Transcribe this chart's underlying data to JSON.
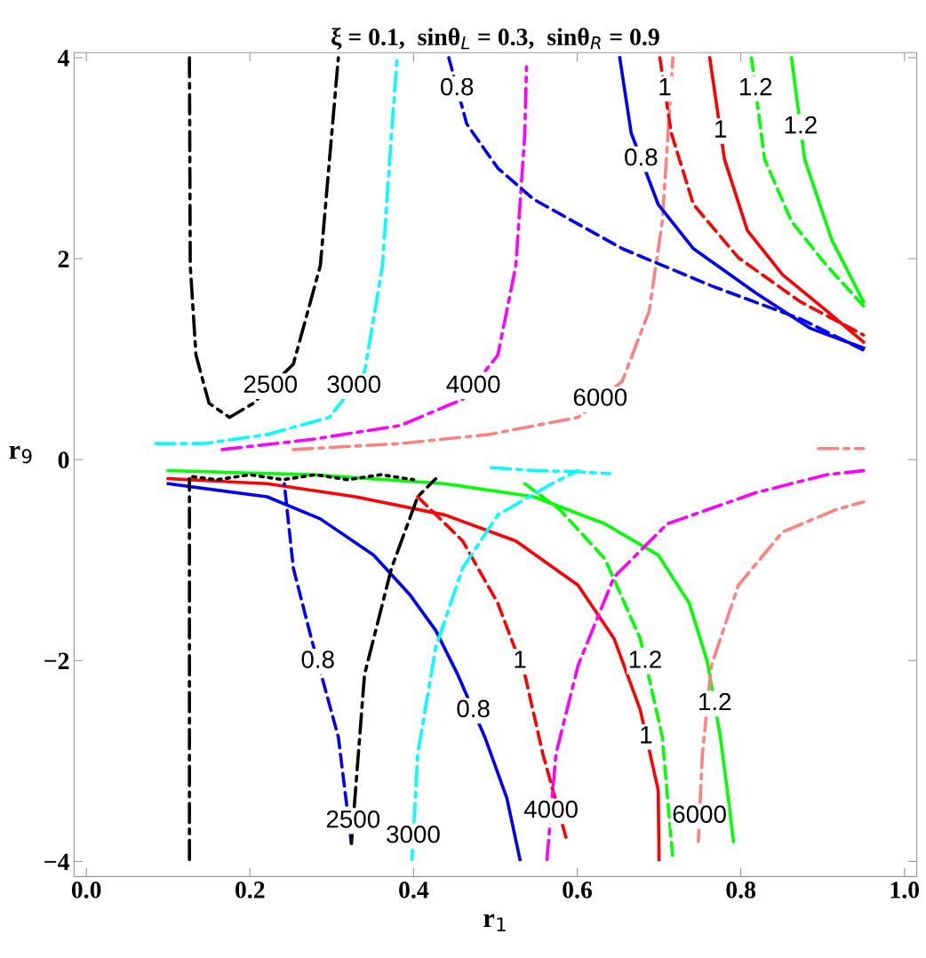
{
  "chart_data": {
    "type": "line",
    "title": "ξ = 0.1,  sinθ$_{L}$ = 0.3,  sinθ$_{R}$ = 0.9",
    "xlabel": "r$_{1}$",
    "ylabel": "r$_{9}$",
    "xlim": [
      -0.015,
      1.015
    ],
    "ylim": [
      -4.15,
      4.05
    ],
    "xticks": [
      {
        "value": 0,
        "label": "0.0"
      },
      {
        "value": 0.2,
        "label": "0.2"
      },
      {
        "value": 0.4,
        "label": "0.4"
      },
      {
        "value": 0.6,
        "label": "0.6"
      },
      {
        "value": 0.8,
        "label": "0.8"
      },
      {
        "value": 1,
        "label": "1.0"
      }
    ],
    "yticks": [
      {
        "value": -4,
        "label": "−4"
      },
      {
        "value": -2,
        "label": "−2"
      },
      0,
      2,
      4
    ],
    "grid": false,
    "marker": "none",
    "series": [
      {
        "color": "#000000",
        "line_style": "dashdot",
        "x": [
          0.126,
          0.127,
          0.134,
          0.15,
          0.175,
          0.204,
          0.253,
          0.286,
          0.308
        ],
        "values": [
          4.0,
          1.93,
          1.04,
          0.56,
          0.42,
          0.56,
          0.95,
          1.93,
          4.0
        ]
      },
      {
        "color": "#00ffff",
        "line_style": "dashdot",
        "x": [
          0.085,
          0.145,
          0.221,
          0.297,
          0.34,
          0.362,
          0.373,
          0.38
        ],
        "values": [
          0.16,
          0.16,
          0.25,
          0.42,
          0.87,
          1.93,
          3.25,
          4.0
        ]
      },
      {
        "color": "#ff00ff",
        "line_style": "dashdot",
        "x": [
          0.166,
          0.275,
          0.384,
          0.46,
          0.503,
          0.525,
          0.536,
          0.538
        ],
        "values": [
          0.1,
          0.2,
          0.34,
          0.6,
          1.04,
          1.93,
          3.25,
          3.91
        ]
      },
      {
        "color": "#ff8080",
        "line_style": "dashdot",
        "x": [
          0.253,
          0.384,
          0.492,
          0.601,
          0.655,
          0.688,
          0.704,
          0.717
        ],
        "values": [
          0.1,
          0.16,
          0.25,
          0.42,
          0.78,
          1.48,
          2.37,
          4.0
        ]
      },
      {
        "color": "#ff8080",
        "line_style": "dashdot",
        "x": [
          0.895,
          0.95
        ],
        "values": [
          0.11,
          0.11
        ]
      },
      {
        "color": "#0000ff",
        "line_style": "dashed",
        "x": [
          0.443,
          0.465,
          0.503,
          0.547,
          0.655,
          0.764,
          0.873,
          0.95
        ],
        "values": [
          4.0,
          3.34,
          2.9,
          2.59,
          2.1,
          1.73,
          1.4,
          1.09
        ]
      },
      {
        "color": "#0000ff",
        "line_style": "solid",
        "x": [
          0.652,
          0.666,
          0.699,
          0.742,
          0.818,
          0.884,
          0.95
        ],
        "values": [
          4.0,
          3.25,
          2.54,
          2.1,
          1.66,
          1.31,
          1.11
        ]
      },
      {
        "color": "#ff0000",
        "line_style": "dashed",
        "x": [
          0.701,
          0.715,
          0.742,
          0.797,
          0.873,
          0.95
        ],
        "values": [
          4.0,
          3.25,
          2.54,
          2.01,
          1.57,
          1.24
        ]
      },
      {
        "color": "#ff0000",
        "line_style": "solid",
        "x": [
          0.762,
          0.78,
          0.808,
          0.851,
          0.905,
          0.95
        ],
        "values": [
          4.0,
          2.99,
          2.28,
          1.84,
          1.48,
          1.17
        ]
      },
      {
        "color": "#00ff00",
        "line_style": "dashed",
        "x": [
          0.813,
          0.829,
          0.862,
          0.905,
          0.95
        ],
        "values": [
          4.0,
          2.99,
          2.37,
          1.93,
          1.53
        ]
      },
      {
        "color": "#00ff00",
        "line_style": "solid",
        "x": [
          0.862,
          0.878,
          0.911,
          0.95
        ],
        "values": [
          4.0,
          2.99,
          2.19,
          1.57
        ]
      },
      {
        "color": "#0000ff",
        "line_style": "solid",
        "x": [
          0.1,
          0.221,
          0.286,
          0.351,
          0.395,
          0.427,
          0.454,
          0.487,
          0.514,
          0.53
        ],
        "values": [
          -0.24,
          -0.37,
          -0.59,
          -0.95,
          -1.34,
          -1.7,
          -2.14,
          -2.76,
          -3.37,
          -3.98
        ]
      },
      {
        "color": "#ff0000",
        "line_style": "solid",
        "x": [
          0.1,
          0.221,
          0.329,
          0.438,
          0.525,
          0.601,
          0.645,
          0.677,
          0.699,
          0.7
        ],
        "values": [
          -0.19,
          -0.24,
          -0.37,
          -0.55,
          -0.81,
          -1.25,
          -1.78,
          -2.49,
          -3.29,
          -3.98
        ]
      },
      {
        "color": "#00ff00",
        "line_style": "solid",
        "x": [
          0.1,
          0.275,
          0.438,
          0.547,
          0.634,
          0.699,
          0.737,
          0.759,
          0.775,
          0.786,
          0.791
        ],
        "values": [
          -0.11,
          -0.15,
          -0.24,
          -0.37,
          -0.64,
          -0.95,
          -1.43,
          -2.01,
          -2.76,
          -3.46,
          -3.8
        ]
      },
      {
        "color": "#ff0000",
        "line_style": "dashed",
        "x": [
          0.405,
          0.46,
          0.503,
          0.536,
          0.558,
          0.587
        ],
        "values": [
          -0.37,
          -0.81,
          -1.43,
          -2.14,
          -2.93,
          -3.78
        ]
      },
      {
        "color": "#00ff00",
        "line_style": "dashed",
        "x": [
          0.536,
          0.579,
          0.634,
          0.677,
          0.704,
          0.717
        ],
        "values": [
          -0.24,
          -0.5,
          -0.99,
          -1.78,
          -2.76,
          -3.98
        ]
      },
      {
        "color": "#0000ff",
        "line_style": "dashed",
        "x": [
          0.324,
          0.308,
          0.275,
          0.253,
          0.242
        ],
        "values": [
          -3.82,
          -2.76,
          -1.78,
          -1.08,
          -0.24
        ]
      },
      {
        "color": "#000000",
        "line_style": "dashdot",
        "x": [
          0.126,
          0.126,
          0.126
        ],
        "values": [
          -3.98,
          -1.61,
          -0.19
        ]
      },
      {
        "color": "#000000",
        "line_style": "dashdot",
        "x": [
          0.324,
          0.34,
          0.373,
          0.405,
          0.427
        ],
        "values": [
          -3.82,
          -2.14,
          -1.08,
          -0.37,
          -0.19
        ]
      },
      {
        "color": "#000000",
        "line_style": "dotted",
        "x": [
          0.13,
          0.16,
          0.2,
          0.24,
          0.28,
          0.32,
          0.36,
          0.4
        ],
        "values": [
          -0.17,
          -0.2,
          -0.15,
          -0.2,
          -0.15,
          -0.2,
          -0.15,
          -0.2
        ]
      },
      {
        "color": "#00ffff",
        "line_style": "dashdot",
        "x": [
          0.398,
          0.405,
          0.427,
          0.46,
          0.503,
          0.569,
          0.601
        ],
        "values": [
          -3.98,
          -2.93,
          -1.87,
          -1.08,
          -0.55,
          -0.24,
          -0.11
        ]
      },
      {
        "color": "#00ffff",
        "line_style": "dashdot",
        "x": [
          0.495,
          0.55,
          0.6,
          0.64
        ],
        "values": [
          -0.08,
          -0.11,
          -0.12,
          -0.14
        ]
      },
      {
        "color": "#ff00ff",
        "line_style": "dashdot",
        "x": [
          0.563,
          0.574,
          0.601,
          0.645,
          0.71,
          0.818,
          0.905,
          0.95
        ],
        "values": [
          -3.98,
          -2.93,
          -2.05,
          -1.17,
          -0.64,
          -0.33,
          -0.15,
          -0.11
        ]
      },
      {
        "color": "#ff8080",
        "line_style": "dashdot",
        "x": [
          0.748,
          0.753,
          0.764,
          0.797,
          0.851,
          0.916,
          0.95
        ],
        "values": [
          -3.8,
          -2.93,
          -2.05,
          -1.25,
          -0.72,
          -0.5,
          -0.42
        ]
      }
    ],
    "annotations": [
      {
        "text": "0.8",
        "x": 0.453,
        "y": 3.69
      },
      {
        "text": "0.8",
        "x": 0.678,
        "y": 2.99
      },
      {
        "text": "1",
        "x": 0.707,
        "y": 3.69
      },
      {
        "text": "1",
        "x": 0.775,
        "y": 3.27
      },
      {
        "text": "1.2",
        "x": 0.818,
        "y": 3.69
      },
      {
        "text": "1.2",
        "x": 0.873,
        "y": 3.31
      },
      {
        "text": "2500",
        "x": 0.225,
        "y": 0.73
      },
      {
        "text": "3000",
        "x": 0.327,
        "y": 0.73
      },
      {
        "text": "4000",
        "x": 0.473,
        "y": 0.73
      },
      {
        "text": "6000",
        "x": 0.628,
        "y": 0.6
      },
      {
        "text": "0.8",
        "x": 0.283,
        "y": -2.01
      },
      {
        "text": "1",
        "x": 0.53,
        "y": -2.01
      },
      {
        "text": "1.2",
        "x": 0.683,
        "y": -2.01
      },
      {
        "text": "0.8",
        "x": 0.473,
        "y": -2.5
      },
      {
        "text": "1",
        "x": 0.684,
        "y": -2.76
      },
      {
        "text": "1.2",
        "x": 0.768,
        "y": -2.43
      },
      {
        "text": "2500",
        "x": 0.326,
        "y": -3.6
      },
      {
        "text": "3000",
        "x": 0.3995,
        "y": -3.75
      },
      {
        "text": "4000",
        "x": 0.568,
        "y": -3.5
      },
      {
        "text": "6000",
        "x": 0.7494,
        "y": -3.55
      }
    ]
  }
}
